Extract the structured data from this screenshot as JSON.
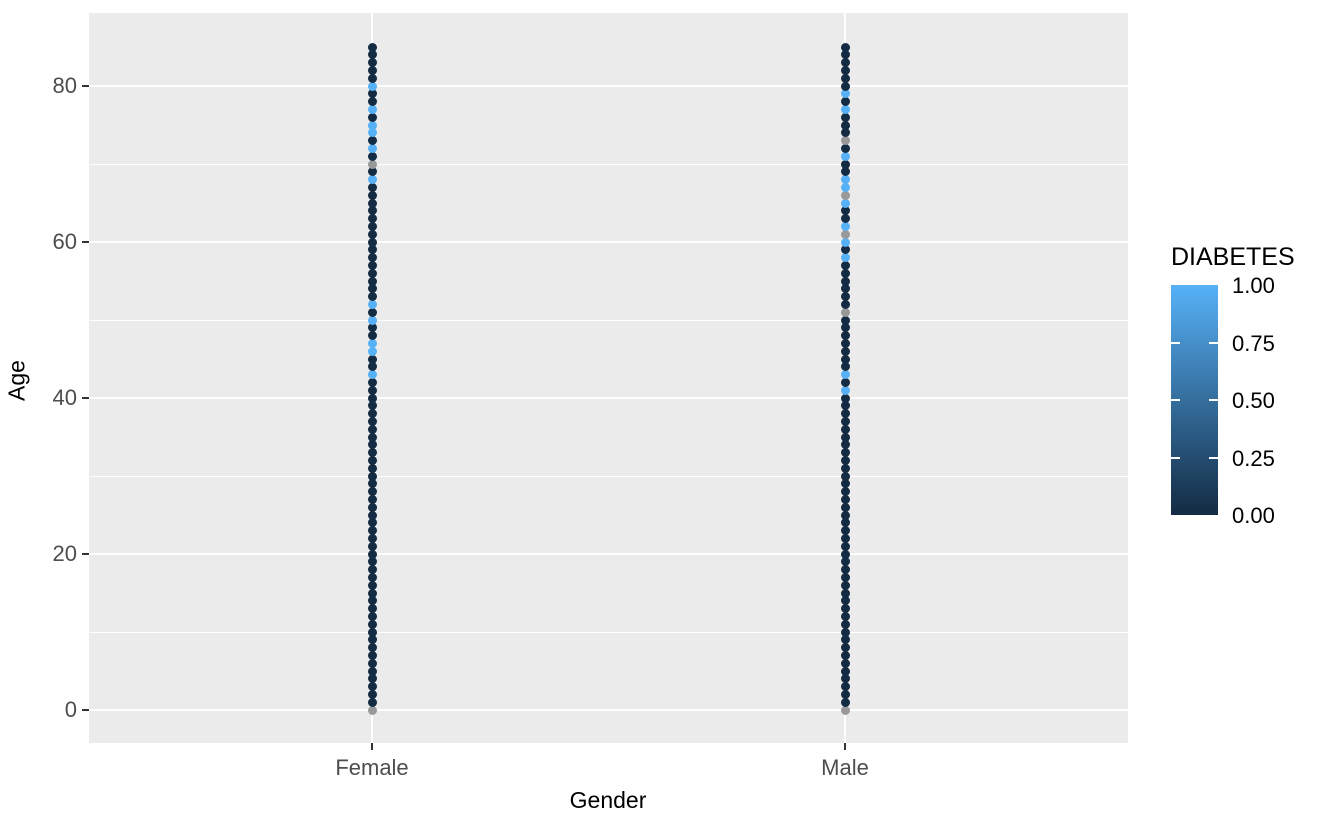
{
  "figure": {
    "background": "#FFFFFF",
    "panel_background": "#EBEBEB",
    "gridline_color": "#FFFFFF",
    "axis_text_color": "#4D4D4D",
    "axis_title_color": "#000000"
  },
  "chart_data": {
    "type": "scatter",
    "title": "",
    "xlabel": "Gender",
    "ylabel": "Age",
    "x_categories": [
      "Female",
      "Male"
    ],
    "y_tick_labels": [
      "0",
      "20",
      "40",
      "60",
      "80"
    ],
    "y_tick_values": [
      0,
      20,
      40,
      60,
      80
    ],
    "y_minor_values": [
      10,
      30,
      50,
      70
    ],
    "age_min": 0,
    "age_max": 85,
    "grid": "on",
    "color_scale": {
      "name": "DIABETES",
      "low_value": 0.0,
      "high_value": 1.0,
      "low_color": "#132B43",
      "high_color": "#56B1F7",
      "na_color": "#999999"
    },
    "series": [
      {
        "name": "Female",
        "description": "one point per integer age 0-85; diabetes value 0 unless listed",
        "diabetes_high_ages": [
          80,
          77,
          75,
          74,
          72,
          68,
          52,
          50,
          47,
          46,
          43
        ],
        "diabetes_na_ages": [
          70,
          0
        ],
        "default_diabetes_value": 0.0
      },
      {
        "name": "Male",
        "description": "one point per integer age 0-85; diabetes value 0 unless listed",
        "diabetes_high_ages": [
          79,
          77,
          71,
          68,
          67,
          65,
          62,
          60,
          58,
          43,
          41
        ],
        "diabetes_na_ages": [
          73,
          66,
          61,
          51,
          0
        ],
        "default_diabetes_value": 0.0
      }
    ],
    "legend": {
      "title": "DIABETES",
      "position": "right",
      "tick_labels": [
        "1.00",
        "0.75",
        "0.50",
        "0.25",
        "0.00"
      ],
      "tick_values": [
        1.0,
        0.75,
        0.5,
        0.25,
        0.0
      ]
    }
  }
}
